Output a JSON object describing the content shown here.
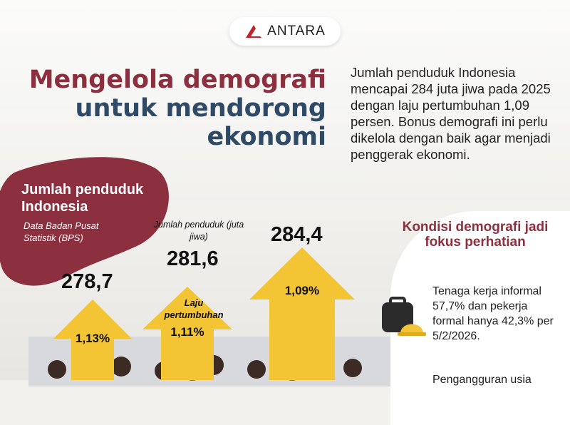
{
  "brand": {
    "logo_text": "ANTARA"
  },
  "title": {
    "line1": "Mengelola demografi",
    "line2": "untuk mendorong",
    "line3": "ekonomi"
  },
  "intro": "Jumlah penduduk Indonesia mencapai 284 juta jiwa pada 2025 dengan laju pertumbuhan 1,09 persen. Bonus demografi ini perlu dikelola dengan baik agar menjadi penggerak ekonomi.",
  "left": {
    "heading": "Jumlah penduduk Indonesia",
    "source": "Data Badan Pusat Statistik (BPS)"
  },
  "chart_labels": {
    "population_header": "Jumlah  penduduk (juta jiwa)",
    "growth_header": "Laju pertumbuhan"
  },
  "arrows": [
    {
      "population": "278,7",
      "growth": "1,13%"
    },
    {
      "population": "281,6",
      "growth": "1,11%"
    },
    {
      "population": "284,4",
      "growth": "1,09%"
    }
  ],
  "conditions": {
    "heading": "Kondisi demografi jadi fokus perhatian",
    "item1": "Tenaga kerja informal 57,7% dan pekerja formal hanya 42,3% per 5/2/2026.",
    "item2": "Pengangguran usia"
  },
  "colors": {
    "maroon": "#8c2f3e",
    "navy": "#2e4a66",
    "arrow": "#f3c433"
  }
}
